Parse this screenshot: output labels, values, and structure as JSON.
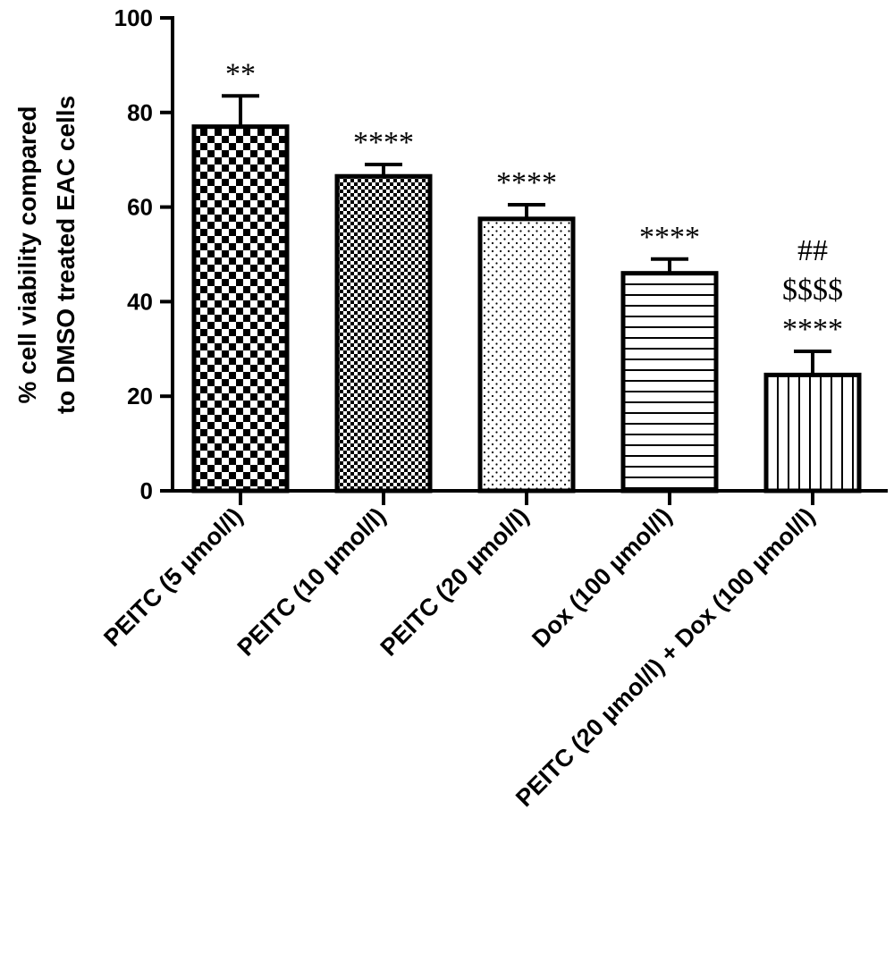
{
  "chart_data": {
    "type": "bar",
    "ylabel_lines": [
      "% cell viability compared",
      "to DMSO treated EAC cells"
    ],
    "ylim": [
      0,
      100
    ],
    "yticks": [
      0,
      20,
      40,
      60,
      80,
      100
    ],
    "ytick_labels": [
      "0",
      "20",
      "40",
      "60",
      "80",
      "100"
    ],
    "categories": [
      "PEITC (5 µmol/l)",
      "PEITC (10 µmol/l)",
      "PEITC (20 µmol/l)",
      "Dox (100 µmol/l)",
      "PEITC (20 µmol/l) + Dox (100 µmol/l)"
    ],
    "values": [
      77,
      66.5,
      57.5,
      46,
      24.5
    ],
    "errors": [
      6.5,
      2.5,
      3,
      3,
      5
    ],
    "patterns": [
      "checker-large",
      "checker-small",
      "dots",
      "horizontal-lines",
      "vertical-lines"
    ],
    "annotations": [
      [
        "**"
      ],
      [
        "****"
      ],
      [
        "****"
      ],
      [
        "****"
      ],
      [
        "##",
        "$$$$",
        "****"
      ]
    ],
    "grid": false,
    "legend": "none"
  }
}
